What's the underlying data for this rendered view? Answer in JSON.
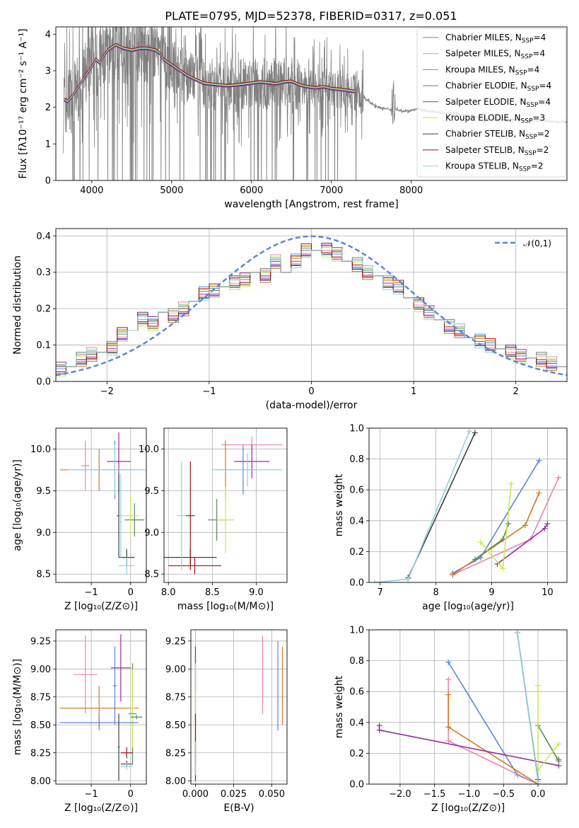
{
  "figure": {
    "title": "PLATE=0795, MJD=52378, FIBERID=0317, z=0.051"
  },
  "colors": {
    "data": "#808080",
    "models": [
      "#5b86d8",
      "#e884b0",
      "#d0781e",
      "#5a8a5a",
      "#9a2aa8",
      "#c8e84e",
      "#404040",
      "#a01010",
      "#8ed0e0"
    ],
    "gauss": "#5b86d8",
    "grid": "#b0b0b0"
  },
  "models": [
    {
      "name": "Chabrier MILES, N",
      "sub": "SSP",
      "suffix": "=4"
    },
    {
      "name": "Salpeter MILES, N",
      "sub": "SSP",
      "suffix": "=4"
    },
    {
      "name": "Kroupa MILES, N",
      "sub": "SSP",
      "suffix": "=4"
    },
    {
      "name": "Chabrier ELODIE, N",
      "sub": "SSP",
      "suffix": "=4"
    },
    {
      "name": "Salpeter ELODIE, N",
      "sub": "SSP",
      "suffix": "=4"
    },
    {
      "name": "Kroupa ELODIE, N",
      "sub": "SSP",
      "suffix": "=3"
    },
    {
      "name": "Chabrier STELIB, N",
      "sub": "SSP",
      "suffix": "=2"
    },
    {
      "name": "Salpeter STELIB, N",
      "sub": "SSP",
      "suffix": "=2"
    },
    {
      "name": "Kroupa STELIB, N",
      "sub": "SSP",
      "suffix": "=2"
    }
  ],
  "chart_data": [
    {
      "id": "spectrum",
      "type": "line",
      "xlabel": "wavelength [Angstrom, rest frame]",
      "ylabel": "Flux [fλ10⁻¹⁷ erg cm⁻² s⁻¹ A⁻¹]",
      "xlim": [
        3550,
        9950
      ],
      "ylim": [
        0,
        4.2
      ],
      "xticks": [
        4000,
        5000,
        6000,
        7000,
        8000
      ],
      "yticks": [
        0,
        1,
        2,
        3,
        4
      ],
      "grid": false,
      "legend": "right",
      "model_curve": {
        "x": [
          3650,
          3700,
          3760,
          3800,
          3850,
          3900,
          3950,
          4000,
          4050,
          4100,
          4150,
          4200,
          4300,
          4400,
          4500,
          4600,
          4700,
          4800,
          4860,
          4900,
          5000,
          5100,
          5200,
          5300,
          5400,
          5500,
          5600,
          5700,
          5800,
          5900,
          6000,
          6100,
          6200,
          6300,
          6400,
          6500,
          6600,
          6700,
          6800,
          6900,
          7000,
          7100,
          7200,
          7300,
          7400,
          7500,
          7600,
          7700,
          7800,
          7900,
          8000,
          8100,
          8200,
          8300,
          8400,
          8500,
          8600,
          8700,
          8800,
          8900
        ],
        "y": [
          2.2,
          2.15,
          2.3,
          2.45,
          2.6,
          2.8,
          2.95,
          3.1,
          3.3,
          3.2,
          3.4,
          3.55,
          3.7,
          3.6,
          3.55,
          3.6,
          3.6,
          3.55,
          3.45,
          3.3,
          3.15,
          3.0,
          2.85,
          2.75,
          2.65,
          2.62,
          2.6,
          2.58,
          2.6,
          2.62,
          2.65,
          2.68,
          2.66,
          2.63,
          2.68,
          2.7,
          2.6,
          2.55,
          2.52,
          2.55,
          2.5,
          2.48,
          2.45,
          2.42,
          2.3,
          2.1,
          2.0,
          1.95,
          1.95,
          1.9,
          1.92,
          1.95,
          1.9,
          1.88,
          1.85,
          1.82,
          1.8,
          1.78,
          1.75,
          1.7
        ]
      }
    },
    {
      "id": "residual_hist",
      "type": "line",
      "xlabel": "(data-model)/error",
      "ylabel": "Normed distribution",
      "xlim": [
        -2.5,
        2.5
      ],
      "ylim": [
        0,
        0.42
      ],
      "xticks": [
        -2,
        -1,
        0,
        1,
        2
      ],
      "yticks": [
        0.0,
        0.1,
        0.2,
        0.3,
        0.4
      ],
      "grid": true,
      "gauss_label": "𝒩(0,1)",
      "bin_centers": [
        -2.45,
        -2.35,
        -2.25,
        -2.15,
        -2.05,
        -1.95,
        -1.85,
        -1.75,
        -1.65,
        -1.55,
        -1.45,
        -1.35,
        -1.25,
        -1.15,
        -1.05,
        -0.95,
        -0.85,
        -0.75,
        -0.65,
        -0.55,
        -0.45,
        -0.35,
        -0.25,
        -0.15,
        -0.05,
        0.05,
        0.15,
        0.25,
        0.35,
        0.45,
        0.55,
        0.65,
        0.75,
        0.85,
        0.95,
        1.05,
        1.15,
        1.25,
        1.35,
        1.45,
        1.55,
        1.65,
        1.75,
        1.85,
        1.95,
        2.05,
        2.15,
        2.25,
        2.35,
        2.45
      ],
      "hist": [
        0.035,
        0.04,
        0.06,
        0.075,
        0.08,
        0.09,
        0.13,
        0.14,
        0.17,
        0.16,
        0.19,
        0.18,
        0.2,
        0.22,
        0.24,
        0.25,
        0.26,
        0.27,
        0.28,
        0.3,
        0.29,
        0.33,
        0.3,
        0.33,
        0.36,
        0.36,
        0.36,
        0.35,
        0.33,
        0.32,
        0.3,
        0.29,
        0.27,
        0.26,
        0.23,
        0.21,
        0.19,
        0.17,
        0.15,
        0.14,
        0.12,
        0.11,
        0.1,
        0.09,
        0.08,
        0.07,
        0.065,
        0.06,
        0.05,
        0.04
      ]
    },
    {
      "id": "age_vs_Z",
      "type": "scatter",
      "xlabel": "Z [log₁₀(Z/Z⊙)]",
      "ylabel": "age  [log₁₀(age/yr)]",
      "xlim": [
        -1.9,
        0.4
      ],
      "ylim": [
        8.4,
        10.25
      ],
      "xticks": [
        -1,
        0
      ],
      "yticks": [
        8.5,
        9.0,
        9.5,
        10.0
      ],
      "grid": true,
      "points": [
        {
          "x": -0.4,
          "y": 9.75,
          "xe": 0.3,
          "ye": 0.35,
          "c": 0
        },
        {
          "x": -1.15,
          "y": 9.8,
          "xe": 0.1,
          "ye": 0.3,
          "c": 1
        },
        {
          "x": -0.8,
          "y": 9.75,
          "xe": 1.0,
          "ye": 0.25,
          "c": 2
        },
        {
          "x": 0.1,
          "y": 9.15,
          "xe": 0.25,
          "ye": 0.2,
          "c": 3
        },
        {
          "x": -0.3,
          "y": 9.85,
          "xe": 0.3,
          "ye": 0.35,
          "c": 4
        },
        {
          "x": 0.0,
          "y": 9.2,
          "xe": 0.2,
          "ye": 0.25,
          "c": 5
        },
        {
          "x": -0.4,
          "y": 9.75,
          "xe": 1.2,
          "ye": 0.3,
          "c": 8
        },
        {
          "x": -0.1,
          "y": 8.7,
          "xe": 0.2,
          "ye": 0.1,
          "c": 6
        },
        {
          "x": -0.1,
          "y": 8.6,
          "xe": 0.2,
          "ye": 0.1,
          "c": 8
        },
        {
          "x": -0.3,
          "y": 9.2,
          "xe": 0.05,
          "ye": 0.5,
          "c": 6
        },
        {
          "x": -0.25,
          "y": 9.2,
          "xe": 0.05,
          "ye": 0.5,
          "c": 8
        }
      ]
    },
    {
      "id": "age_vs_mass",
      "type": "scatter",
      "xlabel": "mass [log₁₀(M/M⊙)]",
      "ylabel": "",
      "xlim": [
        7.95,
        9.35
      ],
      "ylim": [
        8.4,
        10.25
      ],
      "xticks": [
        8.0,
        8.5,
        9.0
      ],
      "yticks": [
        8.5,
        9.0,
        9.5,
        10.0
      ],
      "grid": true,
      "points": [
        {
          "x": 8.85,
          "y": 9.75,
          "xe": 0.35,
          "ye": 0.3,
          "c": 0
        },
        {
          "x": 8.95,
          "y": 10.05,
          "xe": 0.35,
          "ye": 0.1,
          "c": 1
        },
        {
          "x": 8.65,
          "y": 9.75,
          "xe": 0.1,
          "ye": 0.35,
          "c": 2
        },
        {
          "x": 8.55,
          "y": 9.15,
          "xe": 0.1,
          "ye": 0.25,
          "c": 3
        },
        {
          "x": 8.95,
          "y": 9.85,
          "xe": 0.2,
          "ye": 0.2,
          "c": 4
        },
        {
          "x": 8.65,
          "y": 9.15,
          "xe": 0.1,
          "ye": 0.4,
          "c": 5
        },
        {
          "x": 8.9,
          "y": 9.75,
          "xe": 0.4,
          "ye": 0.2,
          "c": 8
        },
        {
          "x": 8.25,
          "y": 8.7,
          "xe": 0.3,
          "ye": 0.1,
          "c": 6
        },
        {
          "x": 8.3,
          "y": 8.6,
          "xe": 0.3,
          "ye": 0.1,
          "c": 7
        },
        {
          "x": 8.15,
          "y": 9.2,
          "xe": 0.05,
          "ye": 0.65,
          "c": 8
        },
        {
          "x": 8.25,
          "y": 9.2,
          "xe": 0.05,
          "ye": 0.65,
          "c": 7
        }
      ]
    },
    {
      "id": "massweight_vs_age",
      "type": "line",
      "xlabel": "age  [log₁₀(age/yr)]",
      "ylabel": "mass weight",
      "xlim": [
        6.8,
        10.35
      ],
      "ylim": [
        0,
        1.0
      ],
      "xticks": [
        7,
        8,
        9,
        10
      ],
      "yticks": [
        0.0,
        0.2,
        0.4,
        0.6,
        0.8,
        1.0
      ],
      "grid": true,
      "series": [
        {
          "c": 0,
          "x": [
            8.3,
            8.8,
            9.85
          ],
          "y": [
            0.06,
            0.16,
            0.79
          ]
        },
        {
          "c": 1,
          "x": [
            8.3,
            9.7,
            10.2
          ],
          "y": [
            0.05,
            0.28,
            0.68
          ]
        },
        {
          "c": 2,
          "x": [
            8.3,
            9.6,
            9.85
          ],
          "y": [
            0.05,
            0.37,
            0.58
          ]
        },
        {
          "c": 3,
          "x": [
            8.7,
            9.2,
            9.3
          ],
          "y": [
            0.15,
            0.28,
            0.38
          ]
        },
        {
          "c": 4,
          "x": [
            9.1,
            9.95,
            10.0
          ],
          "y": [
            0.12,
            0.35,
            0.38
          ]
        },
        {
          "c": 5,
          "x": [
            8.8,
            9.2,
            9.35
          ],
          "y": [
            0.26,
            0.09,
            0.64
          ]
        },
        {
          "c": 6,
          "x": [
            7.5,
            8.7
          ],
          "y": [
            0.03,
            0.97
          ]
        },
        {
          "c": 8,
          "x": [
            6.9,
            7.5,
            8.6
          ],
          "y": [
            0.0,
            0.02,
            0.98
          ]
        }
      ]
    },
    {
      "id": "mass_vs_Z",
      "type": "scatter",
      "xlabel": "Z [log₁₀(Z/Z⊙)]",
      "ylabel": "mass [log₁₀(M/M⊙)]",
      "xlim": [
        -1.9,
        0.4
      ],
      "ylim": [
        7.97,
        9.35
      ],
      "xticks": [
        -1,
        0
      ],
      "yticks": [
        8.0,
        8.25,
        8.5,
        8.75,
        9.0,
        9.25
      ],
      "grid": true,
      "points": [
        {
          "x": -0.4,
          "y": 8.85,
          "xe": 0.05,
          "ye": 0.35,
          "c": 0
        },
        {
          "x": -1.15,
          "y": 8.95,
          "xe": 0.3,
          "ye": 0.35,
          "c": 1
        },
        {
          "x": -0.8,
          "y": 8.65,
          "xe": 1.0,
          "ye": 0.2,
          "c": 2
        },
        {
          "x": 0.05,
          "y": 8.6,
          "xe": 0.1,
          "ye": 0.45,
          "c": 3
        },
        {
          "x": -0.25,
          "y": 9.01,
          "xe": 0.25,
          "ye": 0.3,
          "c": 4
        },
        {
          "x": 0.05,
          "y": 8.65,
          "xe": 0.05,
          "ye": 0.35,
          "c": 5
        },
        {
          "x": -0.8,
          "y": 8.52,
          "xe": 1.0,
          "ye": 0.05,
          "c": 0
        },
        {
          "x": -0.1,
          "y": 8.25,
          "xe": 0.15,
          "ye": 0.05,
          "c": 7
        },
        {
          "x": -0.1,
          "y": 8.15,
          "xe": 0.15,
          "ye": 0.03,
          "c": 6
        },
        {
          "x": -0.1,
          "y": 8.13,
          "xe": 0.15,
          "ye": 0.03,
          "c": 8
        },
        {
          "x": 0.15,
          "y": 8.57,
          "xe": 0.15,
          "ye": 0.02,
          "c": 3
        },
        {
          "x": -0.3,
          "y": 8.3,
          "xe": 0.02,
          "ye": 0.3,
          "c": 6
        }
      ]
    },
    {
      "id": "mass_vs_ebv",
      "type": "scatter",
      "xlabel": "E(B-V)",
      "ylabel": "",
      "xlim": [
        -0.003,
        0.06
      ],
      "ylim": [
        7.97,
        9.35
      ],
      "xticks": [
        0.0,
        0.025,
        0.05
      ],
      "yticks": [
        8.0,
        8.25,
        8.5,
        8.75,
        9.0,
        9.25
      ],
      "grid": true,
      "points": [
        {
          "x": 0.0,
          "y": 8.85,
          "xe": 0,
          "ye": 0.35,
          "c": 0
        },
        {
          "x": 0.044,
          "y": 8.95,
          "xe": 0,
          "ye": 0.35,
          "c": 1
        },
        {
          "x": 0.057,
          "y": 8.85,
          "xe": 0,
          "ye": 0.35,
          "c": 2
        },
        {
          "x": 0.0,
          "y": 8.6,
          "xe": 0,
          "ye": 0.45,
          "c": 3
        },
        {
          "x": 0.0,
          "y": 9.0,
          "xe": 0,
          "ye": 0.2,
          "c": 4
        },
        {
          "x": 0.0,
          "y": 8.65,
          "xe": 0,
          "ye": 0.4,
          "c": 5
        },
        {
          "x": 0.054,
          "y": 8.85,
          "xe": 0,
          "ye": 0.4,
          "c": 0
        },
        {
          "x": 0.0,
          "y": 8.2,
          "xe": 0,
          "ye": 0.15,
          "c": 6
        },
        {
          "x": 0.0,
          "y": 8.3,
          "xe": 0,
          "ye": 0.3,
          "c": 7
        },
        {
          "x": 0.0,
          "y": 8.2,
          "xe": 0,
          "ye": 0.15,
          "c": 8
        }
      ]
    },
    {
      "id": "massweight_vs_Z",
      "type": "line",
      "xlabel": "Z [log₁₀(Z/Z⊙)]",
      "ylabel": "mass weight",
      "xlim": [
        -2.45,
        0.42
      ],
      "ylim": [
        0,
        1.0
      ],
      "xticks": [
        -2.0,
        -1.5,
        -1.0,
        -0.5,
        0.0
      ],
      "yticks": [
        0.0,
        0.2,
        0.4,
        0.6,
        0.8,
        1.0
      ],
      "grid": true,
      "series": [
        {
          "c": 0,
          "x": [
            -1.3,
            -0.3,
            0.0
          ],
          "y": [
            0.79,
            0.06,
            0.0
          ]
        },
        {
          "c": 1,
          "x": [
            -1.3,
            -1.3,
            0.0
          ],
          "y": [
            0.68,
            0.28,
            0.0
          ]
        },
        {
          "c": 2,
          "x": [
            -1.3,
            -1.3,
            0.0
          ],
          "y": [
            0.58,
            0.37,
            0.0
          ]
        },
        {
          "c": 3,
          "x": [
            0.0,
            0.3,
            0.3
          ],
          "y": [
            0.38,
            0.15,
            0.16
          ]
        },
        {
          "c": 4,
          "x": [
            -2.3,
            -2.3,
            0.3
          ],
          "y": [
            0.38,
            0.35,
            0.12
          ]
        },
        {
          "c": 5,
          "x": [
            0.0,
            0.0,
            0.3
          ],
          "y": [
            0.64,
            0.09,
            0.26
          ]
        },
        {
          "c": 6,
          "x": [
            -0.3,
            0.0
          ],
          "y": [
            0.98,
            0.03
          ]
        },
        {
          "c": 8,
          "x": [
            -0.3,
            0.0
          ],
          "y": [
            0.98,
            0.02
          ]
        }
      ]
    }
  ]
}
